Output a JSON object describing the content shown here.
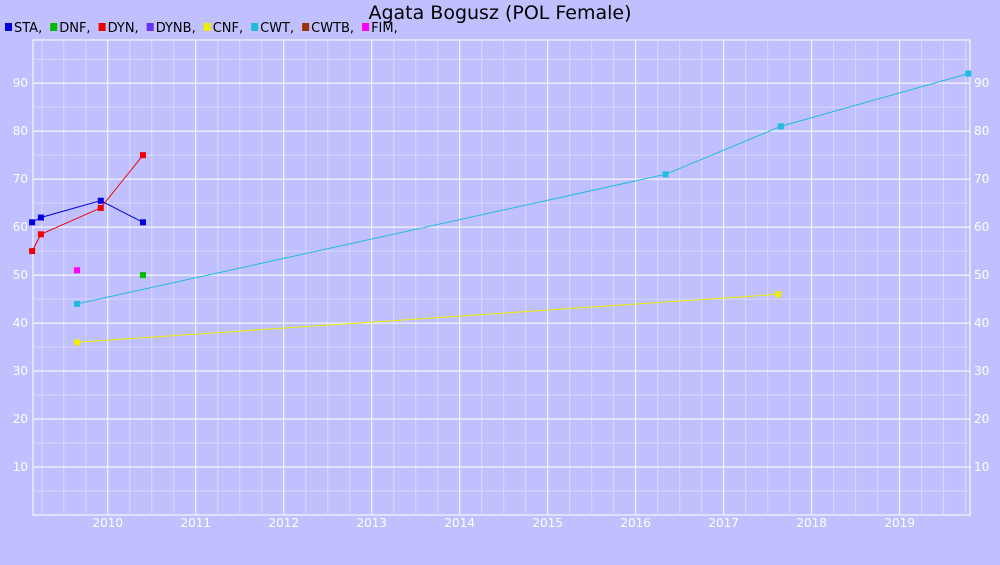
{
  "chart_data": {
    "type": "line",
    "title": "Agata Bogusz (POL Female)",
    "legend_position": "top-left",
    "grid": true,
    "colors": {
      "background": "#c0c0ff",
      "grid_major": "#ffffff",
      "grid_minor": "#d8d8ff",
      "tick_text": "#ffffff"
    },
    "x_ticks": [
      "2010",
      "2011",
      "2012",
      "2013",
      "2014",
      "2015",
      "2016",
      "2017",
      "2018",
      "2019"
    ],
    "y_ticks": [
      10,
      20,
      30,
      40,
      50,
      60,
      70,
      80,
      90
    ],
    "xlim": [
      2009.15,
      2019.8
    ],
    "ylim": [
      0,
      99
    ],
    "series": [
      {
        "name": "STA",
        "color": "#0000dd",
        "x": [
          2009.14,
          2009.24,
          2009.92,
          2010.4
        ],
        "y": [
          61,
          62,
          65.5,
          61
        ]
      },
      {
        "name": "DNF",
        "color": "#00bb00",
        "x": [
          2010.4
        ],
        "y": [
          50
        ]
      },
      {
        "name": "DYN",
        "color": "#ee0000",
        "x": [
          2009.14,
          2009.24,
          2009.92,
          2010.4
        ],
        "y": [
          55,
          58.5,
          64,
          75
        ]
      },
      {
        "name": "DYNB",
        "color": "#6633ee",
        "x": [],
        "y": []
      },
      {
        "name": "CNF",
        "color": "#eeee00",
        "x": [
          2009.65,
          2017.62
        ],
        "y": [
          36,
          46
        ]
      },
      {
        "name": "CWT",
        "color": "#22bbdd",
        "x": [
          2009.65,
          2016.34,
          2017.65,
          2019.78
        ],
        "y": [
          44,
          71,
          81,
          92
        ]
      },
      {
        "name": "CWTB",
        "color": "#993300",
        "x": [],
        "y": []
      },
      {
        "name": "FIM",
        "color": "#ff00ff",
        "x": [
          2009.65
        ],
        "y": [
          51
        ]
      }
    ]
  }
}
